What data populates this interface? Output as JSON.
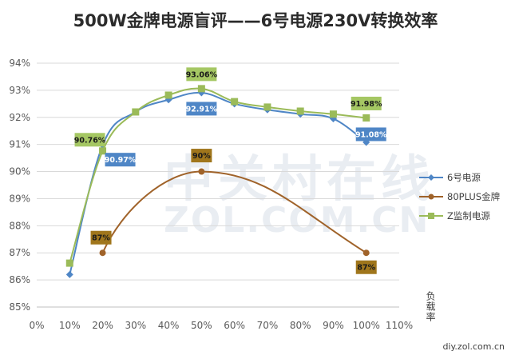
{
  "chart_data": {
    "type": "line",
    "title": "500W金牌电源盲评——6号电源230V转换效率",
    "ylabel": "负载率",
    "source": "diy.zol.com.cn",
    "watermark": {
      "line1": "中关村在线",
      "line2": "ZOL.COM.CN"
    },
    "x_ticks": [
      "0%",
      "10%",
      "20%",
      "30%",
      "40%",
      "50%",
      "60%",
      "70%",
      "80%",
      "90%",
      "100%",
      "110%"
    ],
    "y_ticks": [
      "85%",
      "86%",
      "87%",
      "88%",
      "89%",
      "90%",
      "91%",
      "92%",
      "93%",
      "94%"
    ],
    "xlim": [
      0,
      110
    ],
    "ylim": [
      85,
      94
    ],
    "grid": "horizontal",
    "legend_position": "right",
    "series": [
      {
        "name": "6号电源",
        "color": "#4f86c6",
        "marker": "diamond",
        "x": [
          10,
          20,
          30,
          40,
          50,
          60,
          70,
          80,
          90,
          100
        ],
        "y": [
          86.2,
          90.97,
          92.2,
          92.65,
          92.91,
          92.5,
          92.28,
          92.12,
          91.95,
          91.08
        ],
        "labels": [
          {
            "index": 1,
            "text": "90.97%"
          },
          {
            "index": 4,
            "text": "92.91%"
          },
          {
            "index": 9,
            "text": "91.08%"
          }
        ],
        "label_fill": "#4f86c6",
        "label_text_color": "#ffffff"
      },
      {
        "name": "80PLUS金牌",
        "color": "#a0632a",
        "marker": "circle",
        "x": [
          20,
          50,
          100
        ],
        "y": [
          87,
          90,
          87
        ],
        "labels": [
          {
            "index": 0,
            "text": "87%"
          },
          {
            "index": 1,
            "text": "90%"
          },
          {
            "index": 2,
            "text": "87%"
          }
        ],
        "label_fill": "#a0761c",
        "label_text_color": "#1a1a1a"
      },
      {
        "name": "Z监制电源",
        "color": "#9bbb59",
        "marker": "square",
        "x": [
          10,
          20,
          30,
          40,
          50,
          60,
          70,
          80,
          90,
          100
        ],
        "y": [
          86.62,
          90.76,
          92.2,
          92.82,
          93.06,
          92.58,
          92.38,
          92.23,
          92.12,
          91.98
        ],
        "labels": [
          {
            "index": 1,
            "text": "90.76%"
          },
          {
            "index": 4,
            "text": "93.06%"
          },
          {
            "index": 9,
            "text": "91.98%"
          }
        ],
        "label_fill": "#a5c763",
        "label_text_color": "#1a1a1a"
      }
    ]
  }
}
